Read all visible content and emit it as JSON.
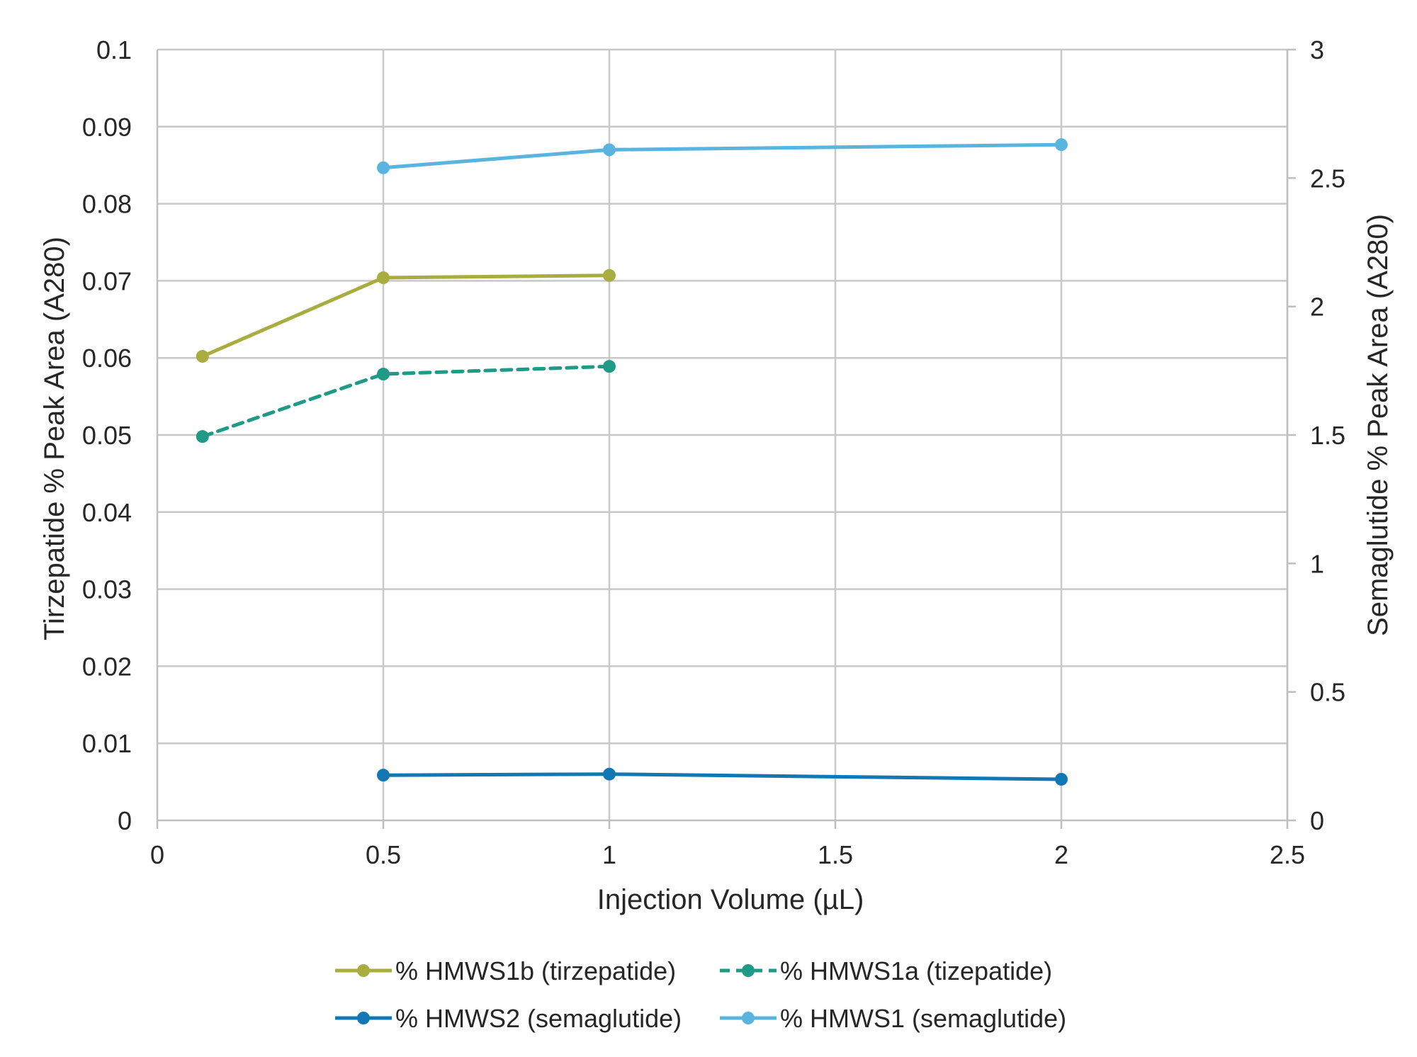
{
  "chart_data": {
    "type": "line",
    "xlabel": "Injection Volume (µL)",
    "ylabel_left": "Tirzepatide % Peak Area (A280)",
    "ylabel_right": "Semaglutide % Peak Area (A280)",
    "xlim": [
      0,
      2.5
    ],
    "ylim_left": [
      0,
      0.1
    ],
    "ylim_right": [
      0,
      3
    ],
    "x_ticks": [
      "0",
      "0.5",
      "1",
      "1.5",
      "2",
      "2.5"
    ],
    "y_ticks_left": [
      "0",
      "0.01",
      "0.02",
      "0.03",
      "0.04",
      "0.05",
      "0.06",
      "0.07",
      "0.08",
      "0.09",
      "0.1"
    ],
    "y_ticks_right": [
      "0",
      "0.5",
      "1",
      "1.5",
      "2",
      "2.5",
      "3"
    ],
    "grid": true,
    "legend_position": "bottom",
    "series": [
      {
        "name": "% HMWS1b (tirzepatide)",
        "axis": "left",
        "color": "#a9ad3f",
        "dashed": false,
        "x": [
          0.1,
          0.5,
          1
        ],
        "y": [
          0.0602,
          0.0704,
          0.0707
        ]
      },
      {
        "name": "% HMWS1a (tizepatide)",
        "axis": "left",
        "color": "#1f9a86",
        "dashed": true,
        "x": [
          0.1,
          0.5,
          1
        ],
        "y": [
          0.0498,
          0.0579,
          0.0589
        ]
      },
      {
        "name": "% HMWS2 (semaglutide)",
        "axis": "right",
        "color": "#1277b5",
        "dashed": false,
        "x": [
          0.5,
          1,
          2
        ],
        "y": [
          0.176,
          0.18,
          0.16
        ]
      },
      {
        "name": "% HMWS1 (semaglutide)",
        "axis": "right",
        "color": "#5ab4e0",
        "dashed": false,
        "x": [
          0.5,
          1,
          2
        ],
        "y": [
          2.54,
          2.61,
          2.63
        ]
      }
    ]
  }
}
